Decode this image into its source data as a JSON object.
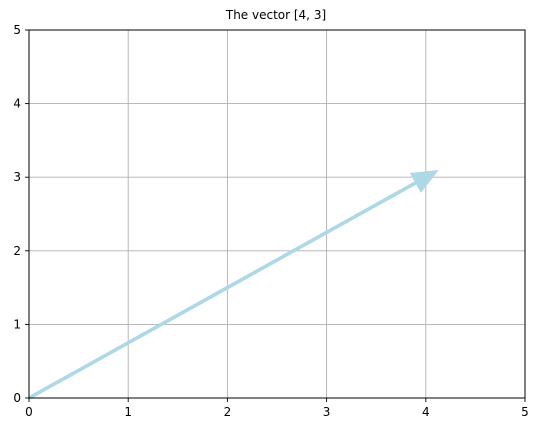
{
  "chart_data": {
    "type": "vector",
    "title": "The vector [4, 3]",
    "xlabel": "",
    "ylabel": "",
    "xlim": [
      0,
      5
    ],
    "ylim": [
      0,
      5
    ],
    "xticks": [
      0,
      1,
      2,
      3,
      4,
      5
    ],
    "yticks": [
      0,
      1,
      2,
      3,
      4,
      5
    ],
    "grid": true,
    "vector": {
      "origin": [
        0,
        0
      ],
      "components": [
        4,
        3
      ],
      "color": "#add8e6"
    }
  }
}
